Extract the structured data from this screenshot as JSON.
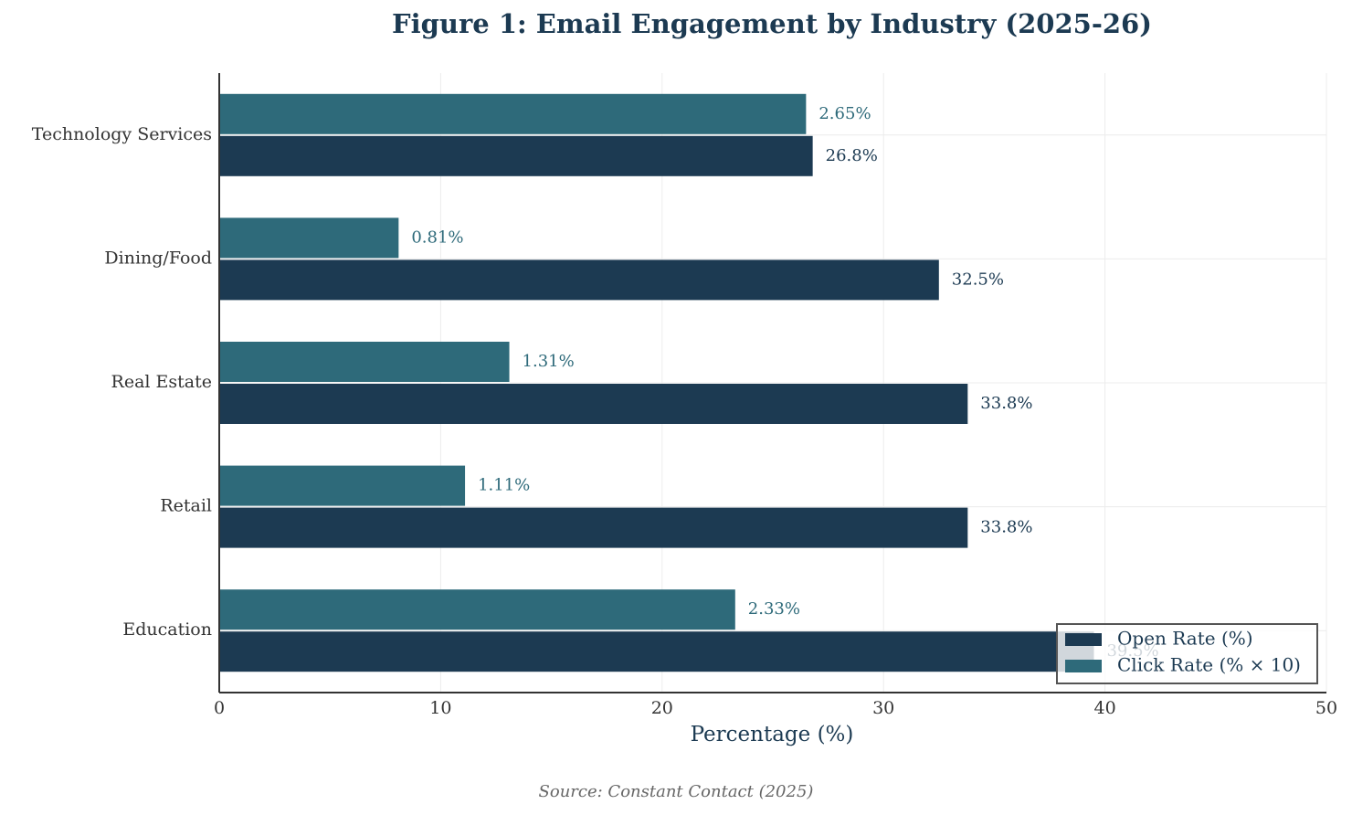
{
  "chart_data": {
    "type": "hbar",
    "title": "Figure 1: Email Engagement by Industry (2025-26)",
    "xlabel": "Percentage (%)",
    "source": "Source: Constant Contact (2025)",
    "categories": [
      "Technology Services",
      "Dining/Food",
      "Real Estate",
      "Retail",
      "Education"
    ],
    "series": [
      {
        "name": "Open Rate (%)",
        "color": "#1c3a52",
        "values": [
          26.8,
          32.5,
          33.8,
          33.8,
          39.5
        ],
        "value_labels": [
          "26.8%",
          "32.5%",
          "33.8%",
          "33.8%",
          "39.5%"
        ]
      },
      {
        "name": "Click Rate (% × 10)",
        "color": "#2e6a7a",
        "values": [
          26.5,
          8.1,
          13.1,
          11.1,
          23.3
        ],
        "value_labels": [
          "2.65%",
          "0.81%",
          "1.31%",
          "1.11%",
          "2.33%"
        ]
      }
    ],
    "xlim": [
      0,
      50
    ],
    "xticks": [
      0,
      10,
      20,
      30,
      40,
      50
    ],
    "grid": true,
    "legend": "lower right"
  }
}
